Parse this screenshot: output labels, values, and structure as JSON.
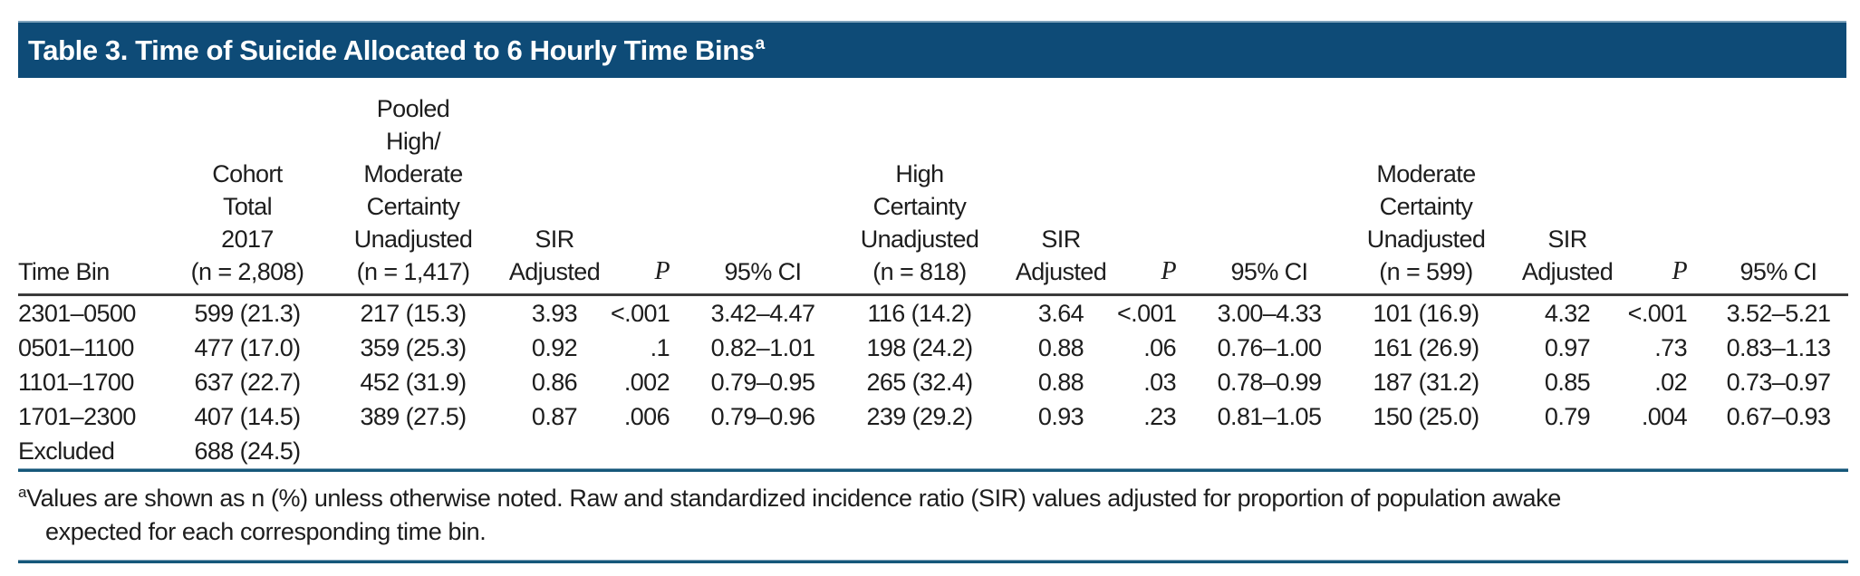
{
  "page": {
    "title": {
      "text": "Table 3. Time of Suicide Allocated to 6 Hourly Time Bins",
      "superscript": "a"
    },
    "colors": {
      "title_bar_background": "#0E4B77",
      "title_bar_top_edge": "#7FA3BC",
      "blue_rule": "#15577A",
      "header_rule": "#3B3B3B",
      "text": "#1D1D1D",
      "title_text": "#FFFFFF"
    }
  },
  "table": {
    "columns": [
      {
        "id": "time-bin",
        "label": "Time Bin",
        "align": "left",
        "italic": false
      },
      {
        "id": "cohort-total",
        "label": "Cohort\nTotal\n2017\n(n = 2,808)",
        "align": "center",
        "italic": false
      },
      {
        "id": "pooled-unadjusted",
        "label": "Pooled\nHigh/\nModerate\nCertainty\nUnadjusted\n(n = 1,417)",
        "align": "center",
        "italic": false
      },
      {
        "id": "pooled-sir-adjusted",
        "label": "SIR\nAdjusted",
        "align": "center",
        "italic": false
      },
      {
        "id": "pooled-p",
        "label": "P",
        "align": "right",
        "italic": true
      },
      {
        "id": "pooled-ci",
        "label": "95% CI",
        "align": "center",
        "italic": false
      },
      {
        "id": "high-unadjusted",
        "label": "High\nCertainty\nUnadjusted\n(n = 818)",
        "align": "center",
        "italic": false
      },
      {
        "id": "high-sir-adjusted",
        "label": "SIR\nAdjusted",
        "align": "center",
        "italic": false
      },
      {
        "id": "high-p",
        "label": "P",
        "align": "right",
        "italic": true
      },
      {
        "id": "high-ci",
        "label": "95% CI",
        "align": "center",
        "italic": false
      },
      {
        "id": "moderate-unadjusted",
        "label": "Moderate\nCertainty\nUnadjusted\n(n = 599)",
        "align": "center",
        "italic": false
      },
      {
        "id": "moderate-sir-adjusted",
        "label": "SIR\nAdjusted",
        "align": "center",
        "italic": false
      },
      {
        "id": "moderate-p",
        "label": "P",
        "align": "right",
        "italic": true
      },
      {
        "id": "moderate-ci",
        "label": "95% CI",
        "align": "center",
        "italic": false
      }
    ],
    "rows": [
      [
        "2301–0500",
        "599 (21.3)",
        "217 (15.3)",
        "3.93",
        "<.001",
        "3.42–4.47",
        "116 (14.2)",
        "3.64",
        "<.001",
        "3.00–4.33",
        "101 (16.9)",
        "4.32",
        "<.001",
        "3.52–5.21"
      ],
      [
        "0501–1100",
        "477 (17.0)",
        "359 (25.3)",
        "0.92",
        ".1",
        "0.82–1.01",
        "198 (24.2)",
        "0.88",
        ".06",
        "0.76–1.00",
        "161 (26.9)",
        "0.97",
        ".73",
        "0.83–1.13"
      ],
      [
        "1101–1700",
        "637 (22.7)",
        "452 (31.9)",
        "0.86",
        ".002",
        "0.79–0.95",
        "265 (32.4)",
        "0.88",
        ".03",
        "0.78–0.99",
        "187 (31.2)",
        "0.85",
        ".02",
        "0.73–0.97"
      ],
      [
        "1701–2300",
        "407 (14.5)",
        "389 (27.5)",
        "0.87",
        ".006",
        "0.79–0.96",
        "239 (29.2)",
        "0.93",
        ".23",
        "0.81–1.05",
        "150 (25.0)",
        "0.79",
        ".004",
        "0.67–0.93"
      ],
      [
        "Excluded",
        "688 (24.5)",
        "",
        "",
        "",
        "",
        "",
        "",
        "",
        "",
        "",
        "",
        "",
        ""
      ]
    ]
  },
  "footnote": {
    "superscript": "a",
    "lines": [
      "Values are shown as n (%) unless otherwise noted. Raw and standardized incidence ratio (SIR) values adjusted for proportion of population awake",
      "expected for each corresponding time bin."
    ]
  }
}
